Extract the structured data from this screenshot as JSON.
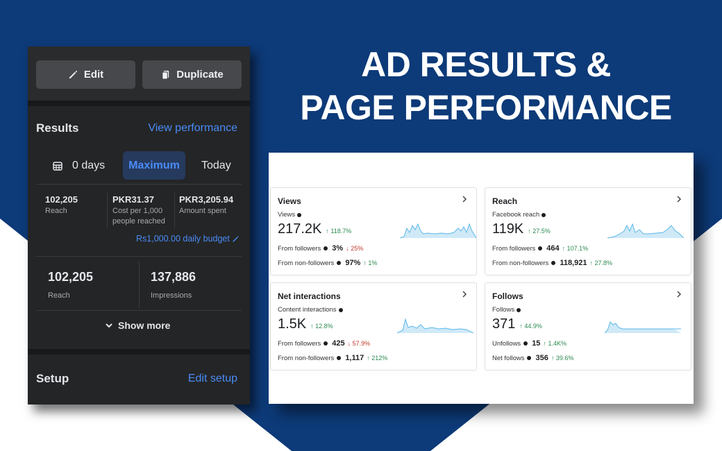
{
  "headline": {
    "line1": "AD RESULTS &",
    "line2": "PAGE PERFORMANCE"
  },
  "colors": {
    "background": "#0d3a78",
    "accent": "#4a8cf7",
    "panel": "#242526",
    "up": "#2b8a4f",
    "down": "#c0392b",
    "sparkline": "#5bb8e8"
  },
  "phone": {
    "buttons": {
      "edit": "Edit",
      "duplicate": "Duplicate"
    },
    "results": {
      "title": "Results",
      "link": "View performance",
      "range": {
        "days": "0 days",
        "maximum": "Maximum",
        "today": "Today",
        "selected": "Maximum"
      },
      "stats": [
        {
          "value": "102,205",
          "label": "Reach"
        },
        {
          "value": "PKR31.37",
          "label_line1": "Cost per 1,000",
          "label_line2": "people reached"
        },
        {
          "value": "PKR3,205.94",
          "label": "Amount spent"
        }
      ],
      "budget": "Rs1,000.00 daily budget",
      "big_stats": [
        {
          "value": "102,205",
          "label": "Reach"
        },
        {
          "value": "137,886",
          "label": "Impressions"
        }
      ],
      "show_more": "Show more"
    },
    "setup": {
      "title": "Setup",
      "link": "Edit setup"
    }
  },
  "insights": {
    "views": {
      "title": "Views",
      "metric_label": "Views",
      "value": "217.2K",
      "change": "↑ 118.7%",
      "row1": {
        "label": "From followers",
        "value": "3%",
        "change": "↓ 25%"
      },
      "row2": {
        "label": "From non-followers",
        "value": "97%",
        "change": "↑ 1%"
      }
    },
    "reach": {
      "title": "Reach",
      "metric_label": "Facebook reach",
      "value": "119K",
      "change": "↑ 27.5%",
      "row1": {
        "label": "From followers",
        "value": "464",
        "change": "↑ 107.1%"
      },
      "row2": {
        "label": "From non-followers",
        "value": "118,921",
        "change": "↑ 27.8%"
      }
    },
    "interactions": {
      "title": "Net interactions",
      "metric_label": "Content interactions",
      "value": "1.5K",
      "change": "↑ 12.8%",
      "row1": {
        "label": "From followers",
        "value": "425",
        "change": "↓ 57.9%"
      },
      "row2": {
        "label": "From non-followers",
        "value": "1,117",
        "change": "↑ 212%"
      }
    },
    "follows": {
      "title": "Follows",
      "metric_label": "Follows",
      "value": "371",
      "change": "↑ 44.9%",
      "row1": {
        "label": "Unfollows",
        "value": "15",
        "change": "↑ 1.4K%"
      },
      "row2": {
        "label": "Net follows",
        "value": "356",
        "change": "↑ 39.6%"
      }
    }
  }
}
